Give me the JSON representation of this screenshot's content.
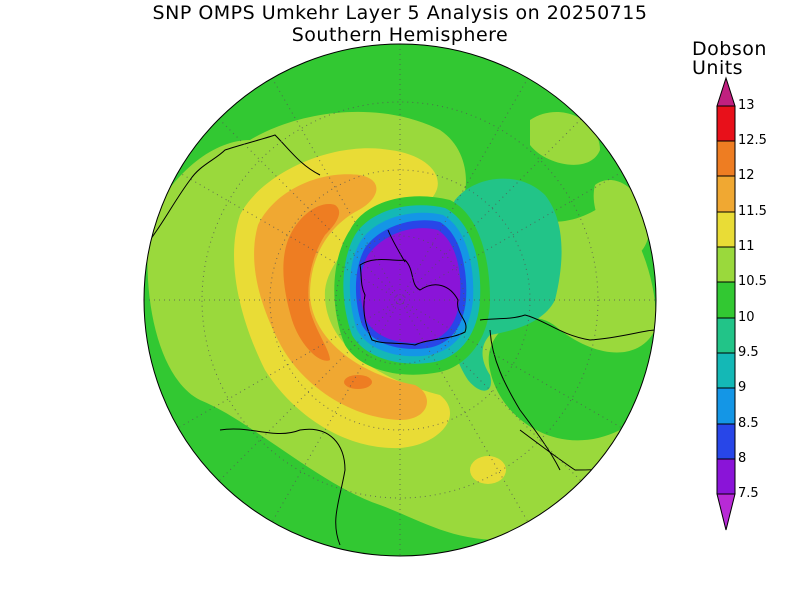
{
  "title": {
    "line1": "SNP OMPS Umkehr Layer 5 Analysis on 20250715",
    "line2": "Southern Hemisphere"
  },
  "colorbar": {
    "units_line1": "Dobson",
    "units_line2": "Units",
    "labels": [
      "13",
      "12.5",
      "12",
      "11.5",
      "11",
      "10.5",
      "10",
      "9.5",
      "9",
      "8.5",
      "8",
      "7.5"
    ],
    "colors": {
      "above_13": "#c0207f",
      "12.5-13": "#e8101a",
      "12-12.5": "#ee7d22",
      "11.5-12": "#f0a832",
      "11-11.5": "#e9dc36",
      "10.5-11": "#9ad93c",
      "10-10.5": "#32c832",
      "9.5-10": "#22c488",
      "9-9.5": "#14b8b6",
      "8.5-9": "#1496e6",
      "8-8.5": "#2846e8",
      "7.5-8": "#8a14d8",
      "below_7.5": "#b82ad6"
    }
  },
  "map": {
    "projection": "south polar stereographic",
    "grid": "dotted lat/lon lines"
  }
}
